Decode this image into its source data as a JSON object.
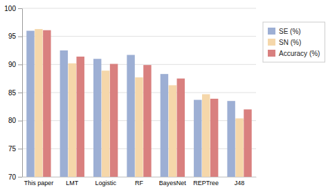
{
  "chart_data": {
    "type": "bar",
    "categories": [
      "This paper",
      "LMT",
      "Logistic",
      "RF",
      "BayesNet",
      "REPTree",
      "J48"
    ],
    "series": [
      {
        "name": "SE (%)",
        "color": "#9dafd4",
        "values": [
          96.0,
          92.5,
          91.0,
          91.7,
          88.3,
          83.7,
          83.5
        ]
      },
      {
        "name": "SN (%)",
        "color": "#f5d7aa",
        "values": [
          96.3,
          90.2,
          88.9,
          87.7,
          86.3,
          84.7,
          80.4
        ]
      },
      {
        "name": "Accuracy (%)",
        "color": "#d9807f",
        "values": [
          96.1,
          91.4,
          90.1,
          89.9,
          87.5,
          83.9,
          82.0
        ]
      }
    ],
    "ylim": [
      70,
      100
    ],
    "yticks": [
      70,
      75,
      80,
      85,
      90,
      95,
      100
    ],
    "grid": true,
    "legend": "right"
  }
}
